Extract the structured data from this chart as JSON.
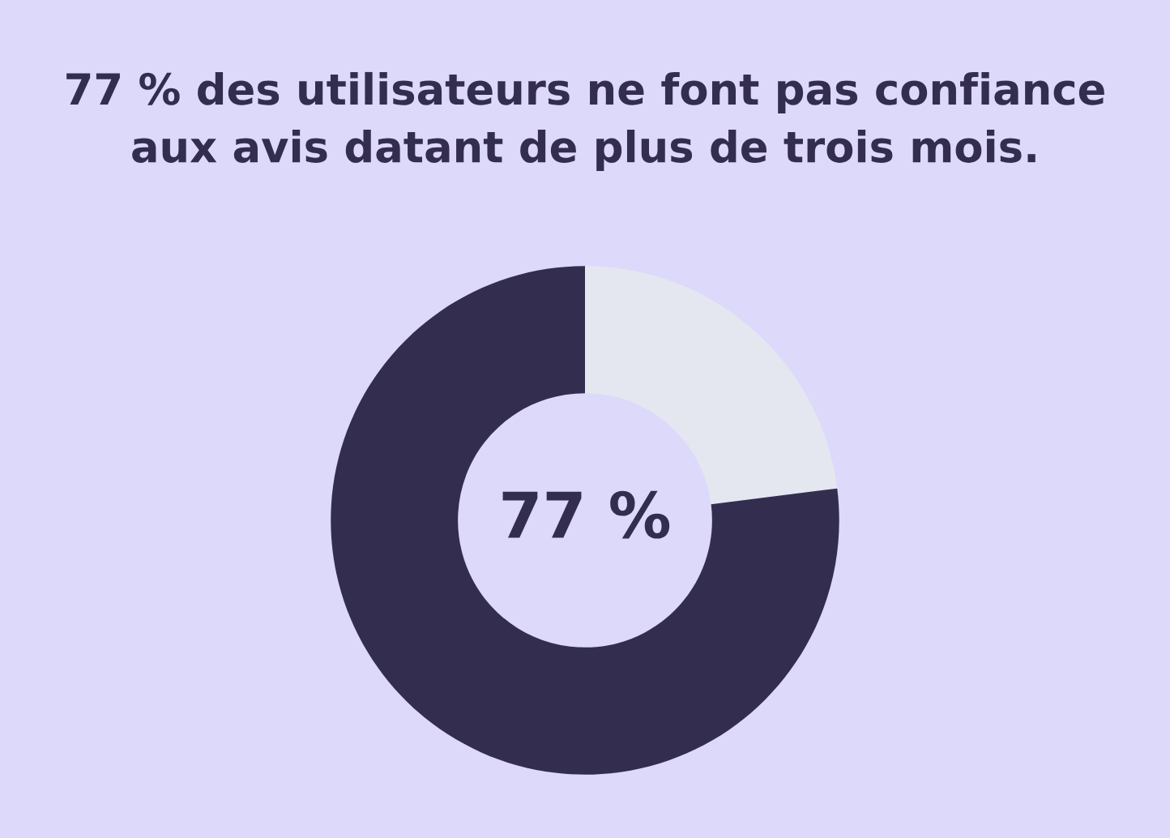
{
  "chart_data": {
    "type": "donut",
    "title": "77 % des utilisateurs ne font pas confiance\naux avis datant de plus de trois mois.",
    "categories": [
      null,
      null
    ],
    "values": [
      23,
      77
    ],
    "colors": [
      "#e4e7f0",
      "#332e50"
    ],
    "annotations": [
      "77 %"
    ],
    "legend": false
  }
}
